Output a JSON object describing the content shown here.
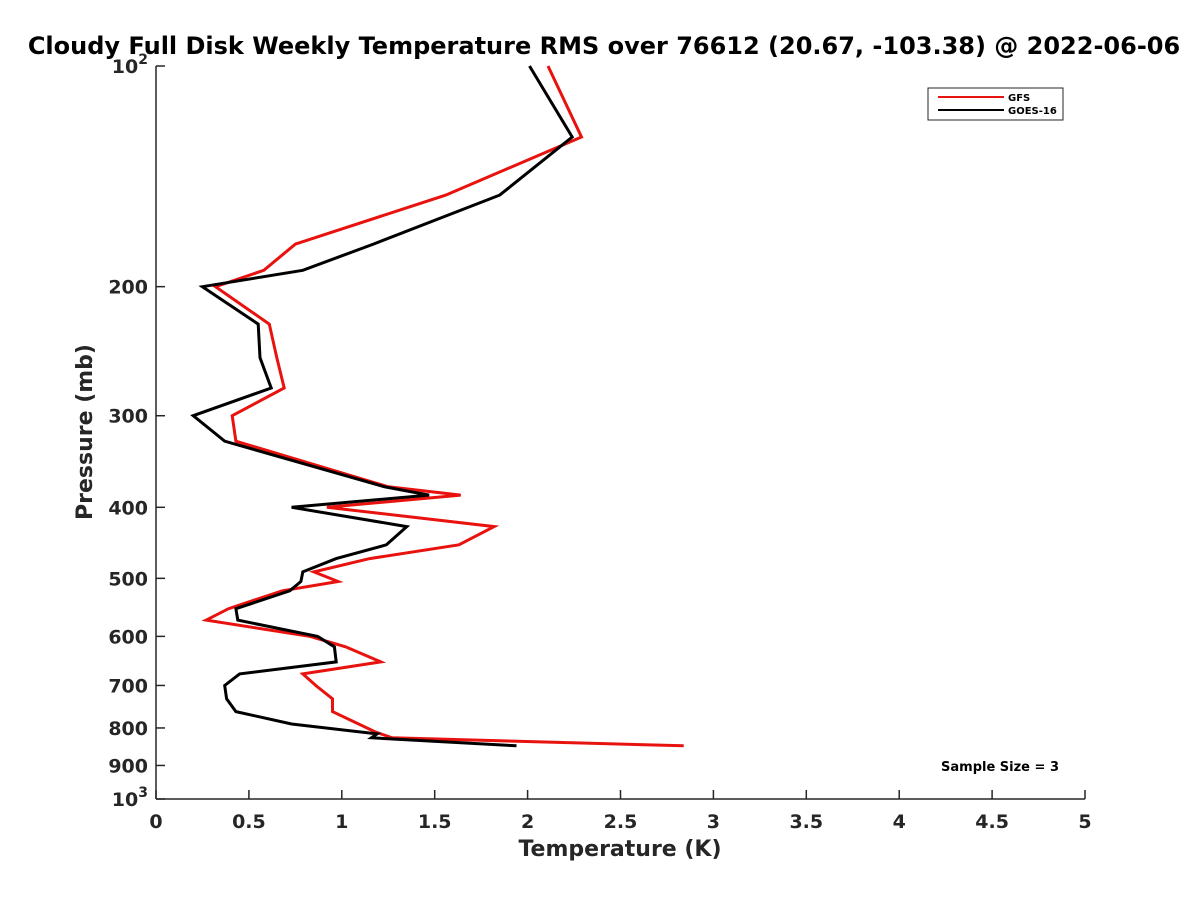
{
  "chart_data": {
    "type": "line",
    "title": "Cloudy Full Disk Weekly Temperature RMS over 76612 (20.67, -103.38) @ 2022-06-06",
    "xlabel": "Temperature (K)",
    "ylabel": "Pressure (mb)",
    "xlim": [
      0,
      5
    ],
    "ylim": [
      100,
      1000
    ],
    "yscale": "log",
    "y_reversed": true,
    "grid": false,
    "legend_position": "top-right",
    "x_ticks": [
      0,
      0.5,
      1,
      1.5,
      2,
      2.5,
      3,
      3.5,
      4,
      4.5,
      5
    ],
    "x_tick_labels": [
      "0",
      "0.5",
      "1",
      "1.5",
      "2",
      "2.5",
      "3",
      "3.5",
      "4",
      "4.5",
      "5"
    ],
    "y_ticks": [
      {
        "value": 100,
        "base": "10",
        "exp": "2"
      },
      {
        "value": 200,
        "label": "200"
      },
      {
        "value": 300,
        "label": "300"
      },
      {
        "value": 400,
        "label": "400"
      },
      {
        "value": 500,
        "label": "500"
      },
      {
        "value": 600,
        "label": "600"
      },
      {
        "value": 700,
        "label": "700"
      },
      {
        "value": 800,
        "label": "800"
      },
      {
        "value": 900,
        "label": "900"
      },
      {
        "value": 1000,
        "base": "10",
        "exp": "3"
      }
    ],
    "series": [
      {
        "name": "GFS",
        "color": "#e8120e",
        "points": [
          [
            2.11,
            100
          ],
          [
            2.29,
            125
          ],
          [
            1.56,
            150
          ],
          [
            0.75,
            175
          ],
          [
            0.58,
            190
          ],
          [
            0.32,
            200
          ],
          [
            0.61,
            225
          ],
          [
            0.65,
            250
          ],
          [
            0.69,
            275
          ],
          [
            0.41,
            300
          ],
          [
            0.43,
            325
          ],
          [
            1.25,
            375
          ],
          [
            1.64,
            385
          ],
          [
            0.92,
            400
          ],
          [
            1.82,
            425
          ],
          [
            1.63,
            450
          ],
          [
            1.15,
            470
          ],
          [
            0.85,
            490
          ],
          [
            0.98,
            505
          ],
          [
            0.68,
            520
          ],
          [
            0.39,
            550
          ],
          [
            0.27,
            570
          ],
          [
            0.83,
            600
          ],
          [
            1.02,
            620
          ],
          [
            1.21,
            650
          ],
          [
            0.79,
            675
          ],
          [
            0.86,
            700
          ],
          [
            0.95,
            730
          ],
          [
            0.95,
            760
          ],
          [
            1.18,
            810
          ],
          [
            1.27,
            825
          ],
          [
            2.84,
            846
          ]
        ]
      },
      {
        "name": "GOES-16",
        "color": "#000000",
        "points": [
          [
            2.01,
            100
          ],
          [
            2.24,
            125
          ],
          [
            1.85,
            150
          ],
          [
            1.17,
            175
          ],
          [
            0.79,
            190
          ],
          [
            0.25,
            200
          ],
          [
            0.55,
            225
          ],
          [
            0.56,
            250
          ],
          [
            0.62,
            275
          ],
          [
            0.2,
            300
          ],
          [
            0.37,
            325
          ],
          [
            1.23,
            375
          ],
          [
            1.47,
            385
          ],
          [
            0.73,
            400
          ],
          [
            1.35,
            425
          ],
          [
            1.24,
            450
          ],
          [
            0.97,
            470
          ],
          [
            0.79,
            490
          ],
          [
            0.78,
            505
          ],
          [
            0.72,
            520
          ],
          [
            0.43,
            550
          ],
          [
            0.44,
            570
          ],
          [
            0.87,
            600
          ],
          [
            0.96,
            620
          ],
          [
            0.97,
            650
          ],
          [
            0.45,
            675
          ],
          [
            0.37,
            700
          ],
          [
            0.38,
            730
          ],
          [
            0.43,
            760
          ],
          [
            0.73,
            790
          ],
          [
            1.19,
            815
          ],
          [
            1.16,
            825
          ],
          [
            1.94,
            846
          ]
        ]
      }
    ],
    "annotations": [
      {
        "text": "Sample Size = 3",
        "position": "bottom-right"
      }
    ]
  }
}
